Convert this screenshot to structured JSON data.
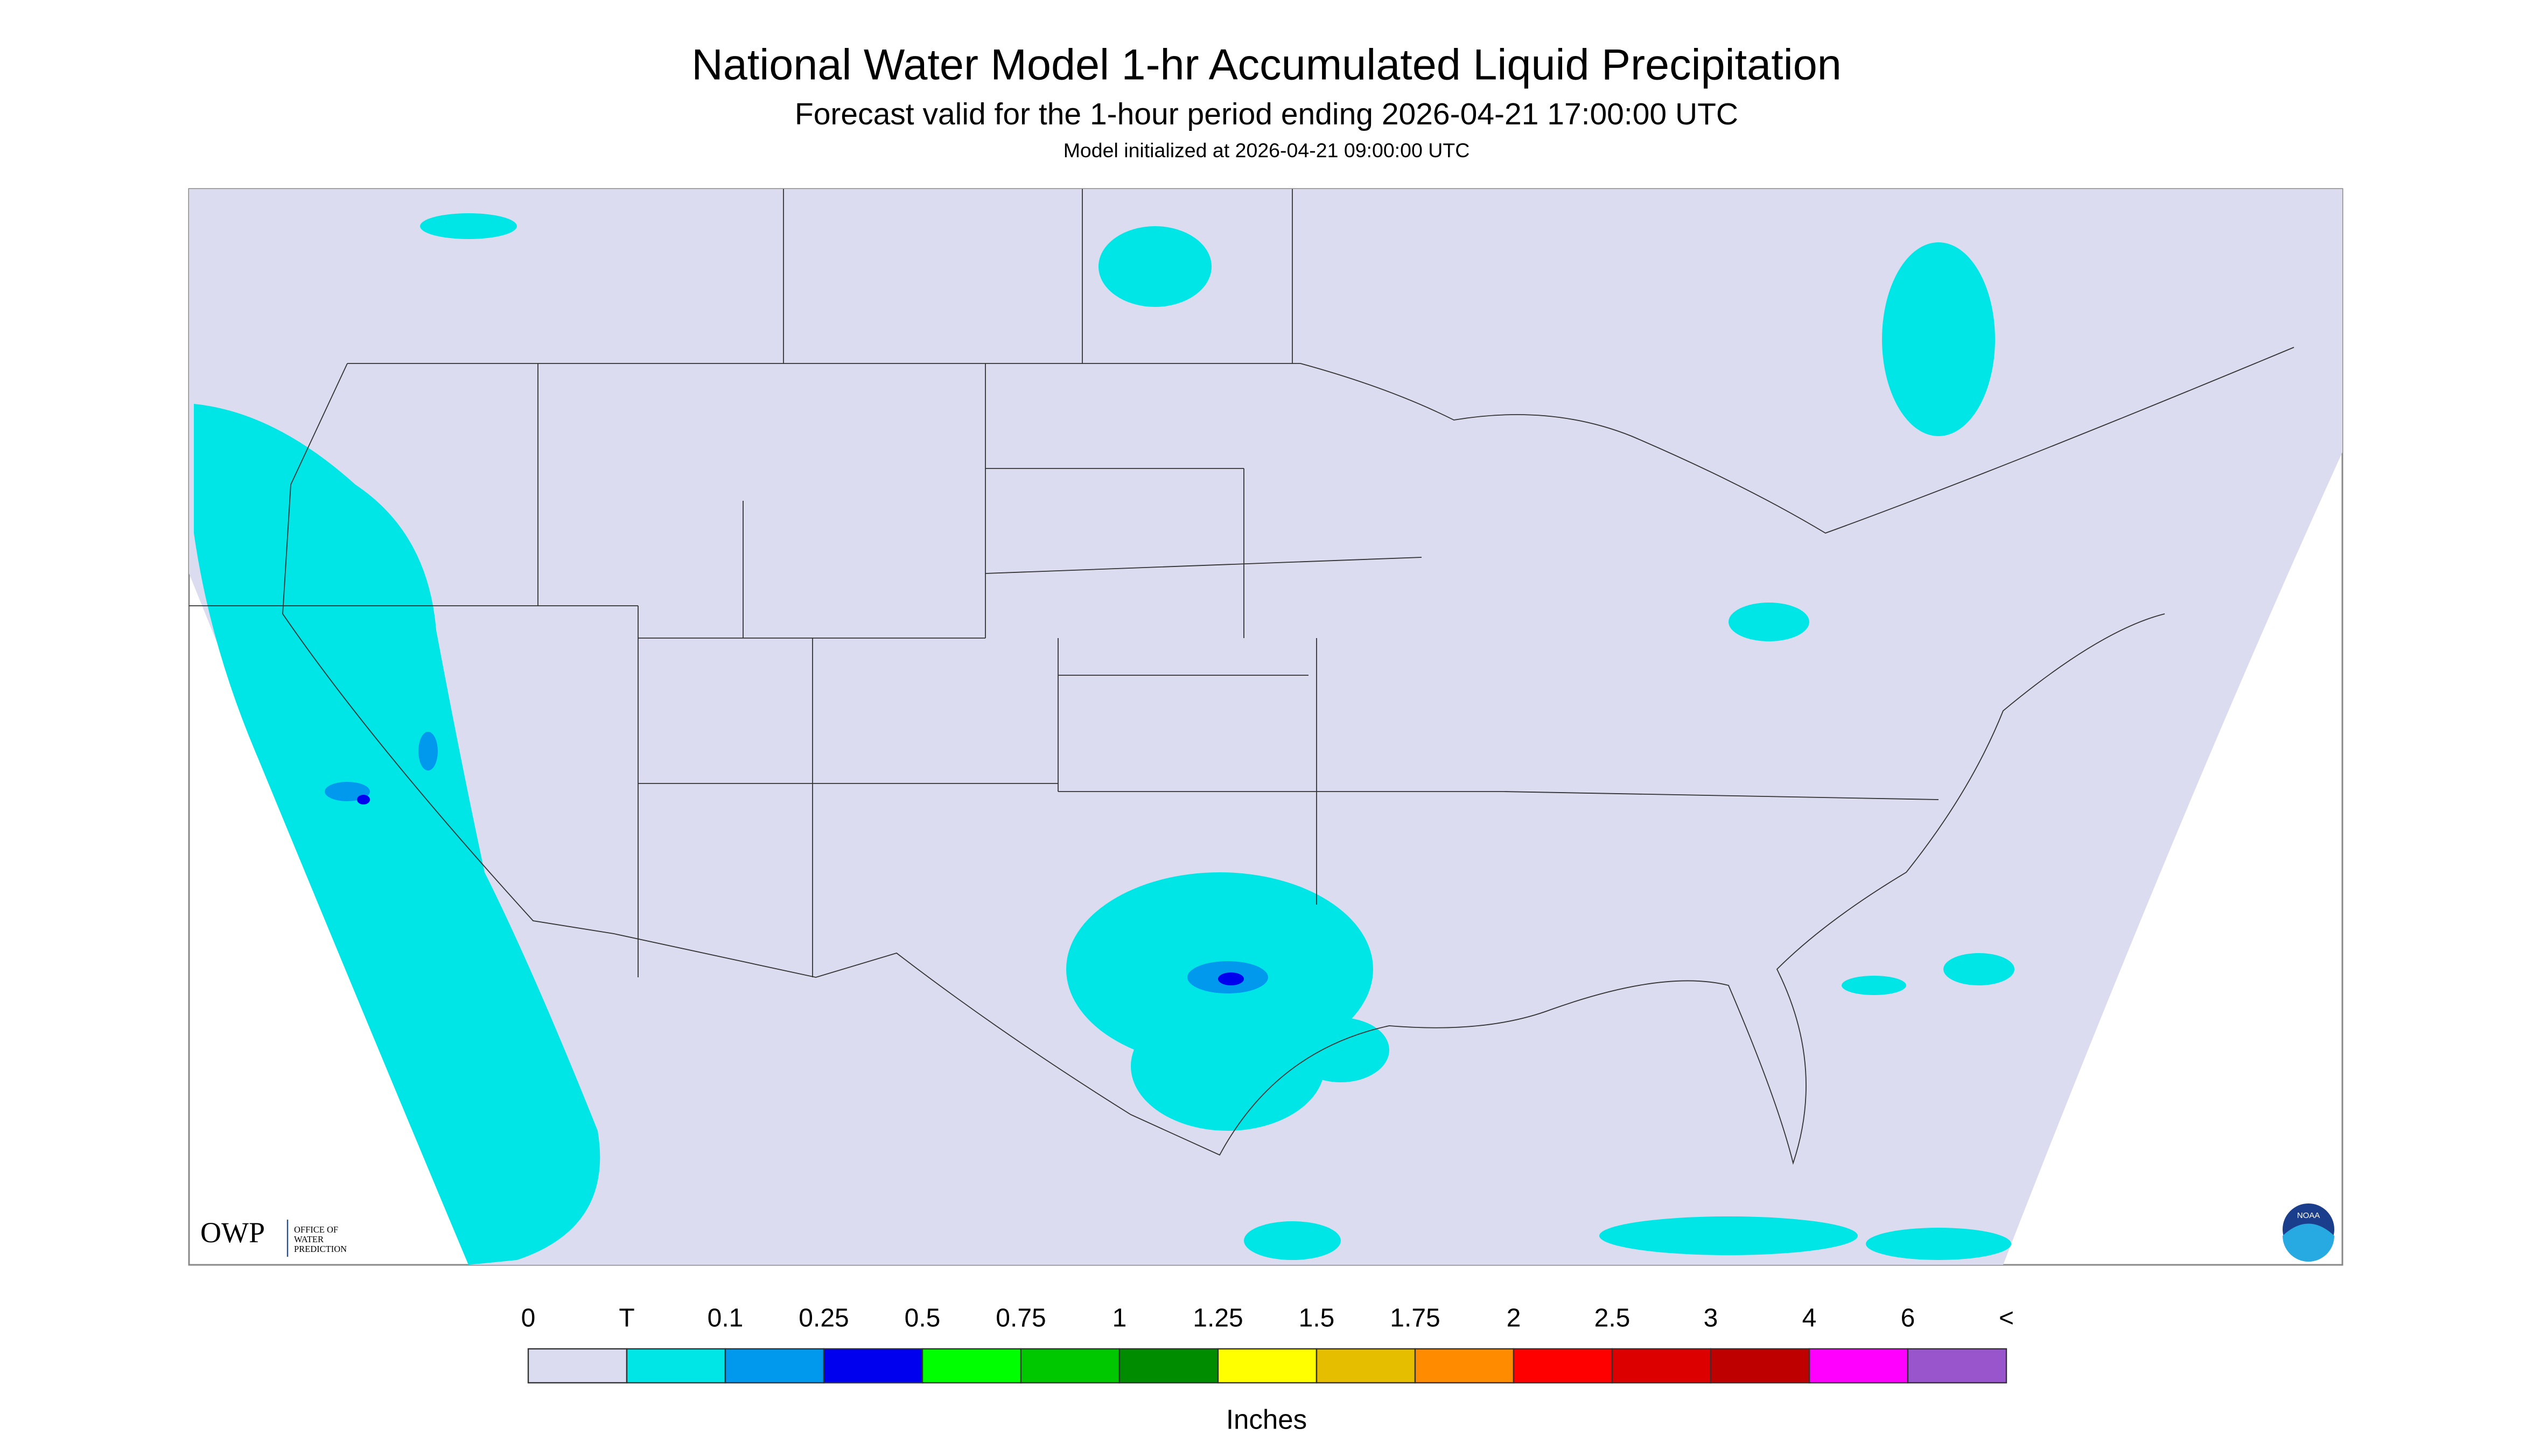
{
  "header": {
    "title": "National Water Model 1-hr Accumulated Liquid Precipitation",
    "subtitle": "Forecast valid for the 1-hour period ending 2026-04-21 17:00:00 UTC",
    "init": "Model initialized at 2026-04-21 09:00:00 UTC"
  },
  "logos": {
    "owp": "OWP",
    "owp_name": [
      "OFFICE OF",
      "WATER",
      "PREDICTION"
    ],
    "noaa": "NOAA"
  },
  "legend": {
    "labels": [
      "0",
      "T",
      "0.1",
      "0.25",
      "0.5",
      "0.75",
      "1",
      "1.25",
      "1.5",
      "1.75",
      "2",
      "2.5",
      "3",
      "4",
      "6",
      "<"
    ],
    "colors": [
      "#dcdcf0",
      "#00e6e6",
      "#0099ee",
      "#0000ee",
      "#00ff00",
      "#00c800",
      "#008c00",
      "#ffff00",
      "#e6be00",
      "#ff8c00",
      "#ff0000",
      "#dc0000",
      "#be0000",
      "#ff00ff",
      "#9955cc"
    ],
    "unit": "Inches"
  }
}
